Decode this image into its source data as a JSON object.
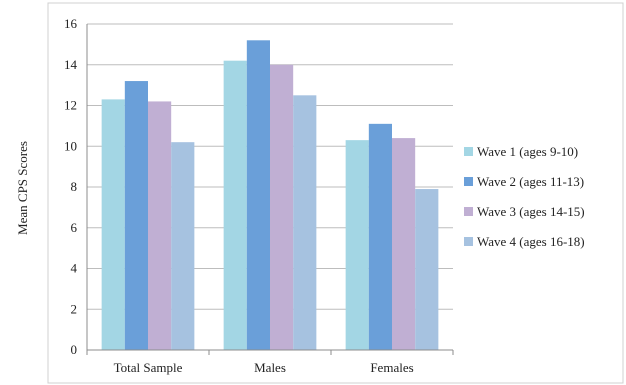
{
  "chart_data": {
    "type": "bar",
    "ylabel": "Mean CPS Scores",
    "xlabel": "",
    "categories": [
      "Total Sample",
      "Males",
      "Females"
    ],
    "ylim": [
      0,
      16
    ],
    "yticks": [
      0,
      2,
      4,
      6,
      8,
      10,
      12,
      14,
      16
    ],
    "grid": true,
    "legend_position": "right",
    "series": [
      {
        "name": "Wave 1 (ages 9-10)",
        "color": "#a3d6e4",
        "values": [
          12.3,
          14.2,
          10.3
        ]
      },
      {
        "name": "Wave 2 (ages 11-13)",
        "color": "#6a9fd9",
        "values": [
          13.2,
          15.2,
          11.1
        ]
      },
      {
        "name": "Wave 3 (ages 14-15)",
        "color": "#c0afd3",
        "values": [
          12.2,
          14.0,
          10.4
        ]
      },
      {
        "name": "Wave 4 (ages 16-18)",
        "color": "#a6c2e0",
        "values": [
          10.2,
          12.5,
          7.9
        ]
      }
    ]
  }
}
